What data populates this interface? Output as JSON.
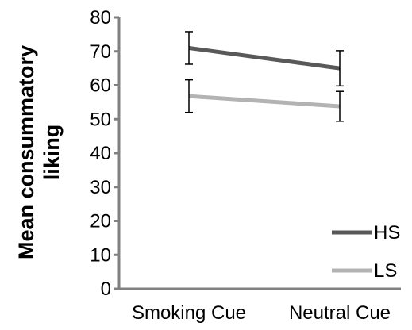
{
  "chart_data": {
    "type": "line",
    "title": "",
    "xlabel": "",
    "ylabel": "Mean consummatory liking",
    "categories": [
      "Smoking Cue",
      "Neutral Cue"
    ],
    "ylim": [
      0,
      80
    ],
    "yticks": [
      0,
      10,
      20,
      30,
      40,
      50,
      60,
      70,
      80
    ],
    "grid": false,
    "legend_position": "bottom-right",
    "series": [
      {
        "name": "HS",
        "color": "#595959",
        "values": [
          71,
          65
        ],
        "error": [
          4.8,
          5.2
        ]
      },
      {
        "name": "LS",
        "color": "#b3b3b3",
        "values": [
          56.8,
          53.8
        ],
        "error": [
          4.8,
          4.4
        ]
      }
    ]
  }
}
